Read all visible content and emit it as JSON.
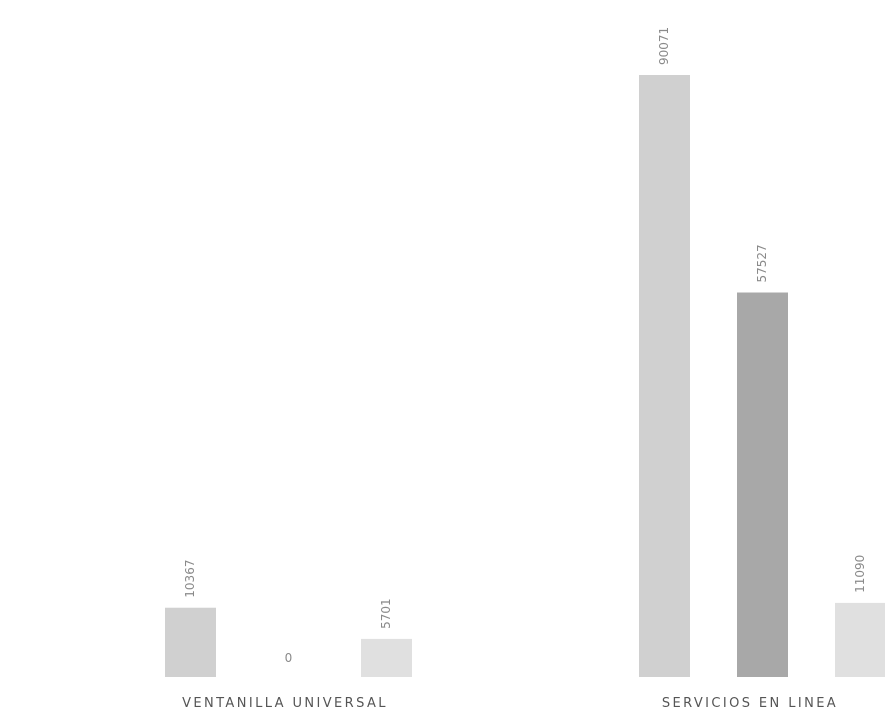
{
  "chart_data": {
    "type": "bar",
    "title": "",
    "xlabel": "",
    "ylabel": "",
    "categories": [
      "VENTANILLA UNIVERSAL",
      "SERVICIOS EN LINEA"
    ],
    "series": [
      {
        "values": [
          10367,
          90071
        ],
        "color": "#d0d0d0"
      },
      {
        "values": [
          0,
          57527
        ],
        "color": "#a8a8a8"
      },
      {
        "values": [
          5701,
          11090
        ],
        "color": "#e0e0e0"
      }
    ],
    "data_labels": [
      [
        "10367",
        "90071"
      ],
      [
        "0",
        "57527"
      ],
      [
        "5701",
        "11090"
      ]
    ],
    "ylim": [
      0,
      90071
    ],
    "grid": false,
    "legend": "none",
    "tick_labels_shown": false
  }
}
